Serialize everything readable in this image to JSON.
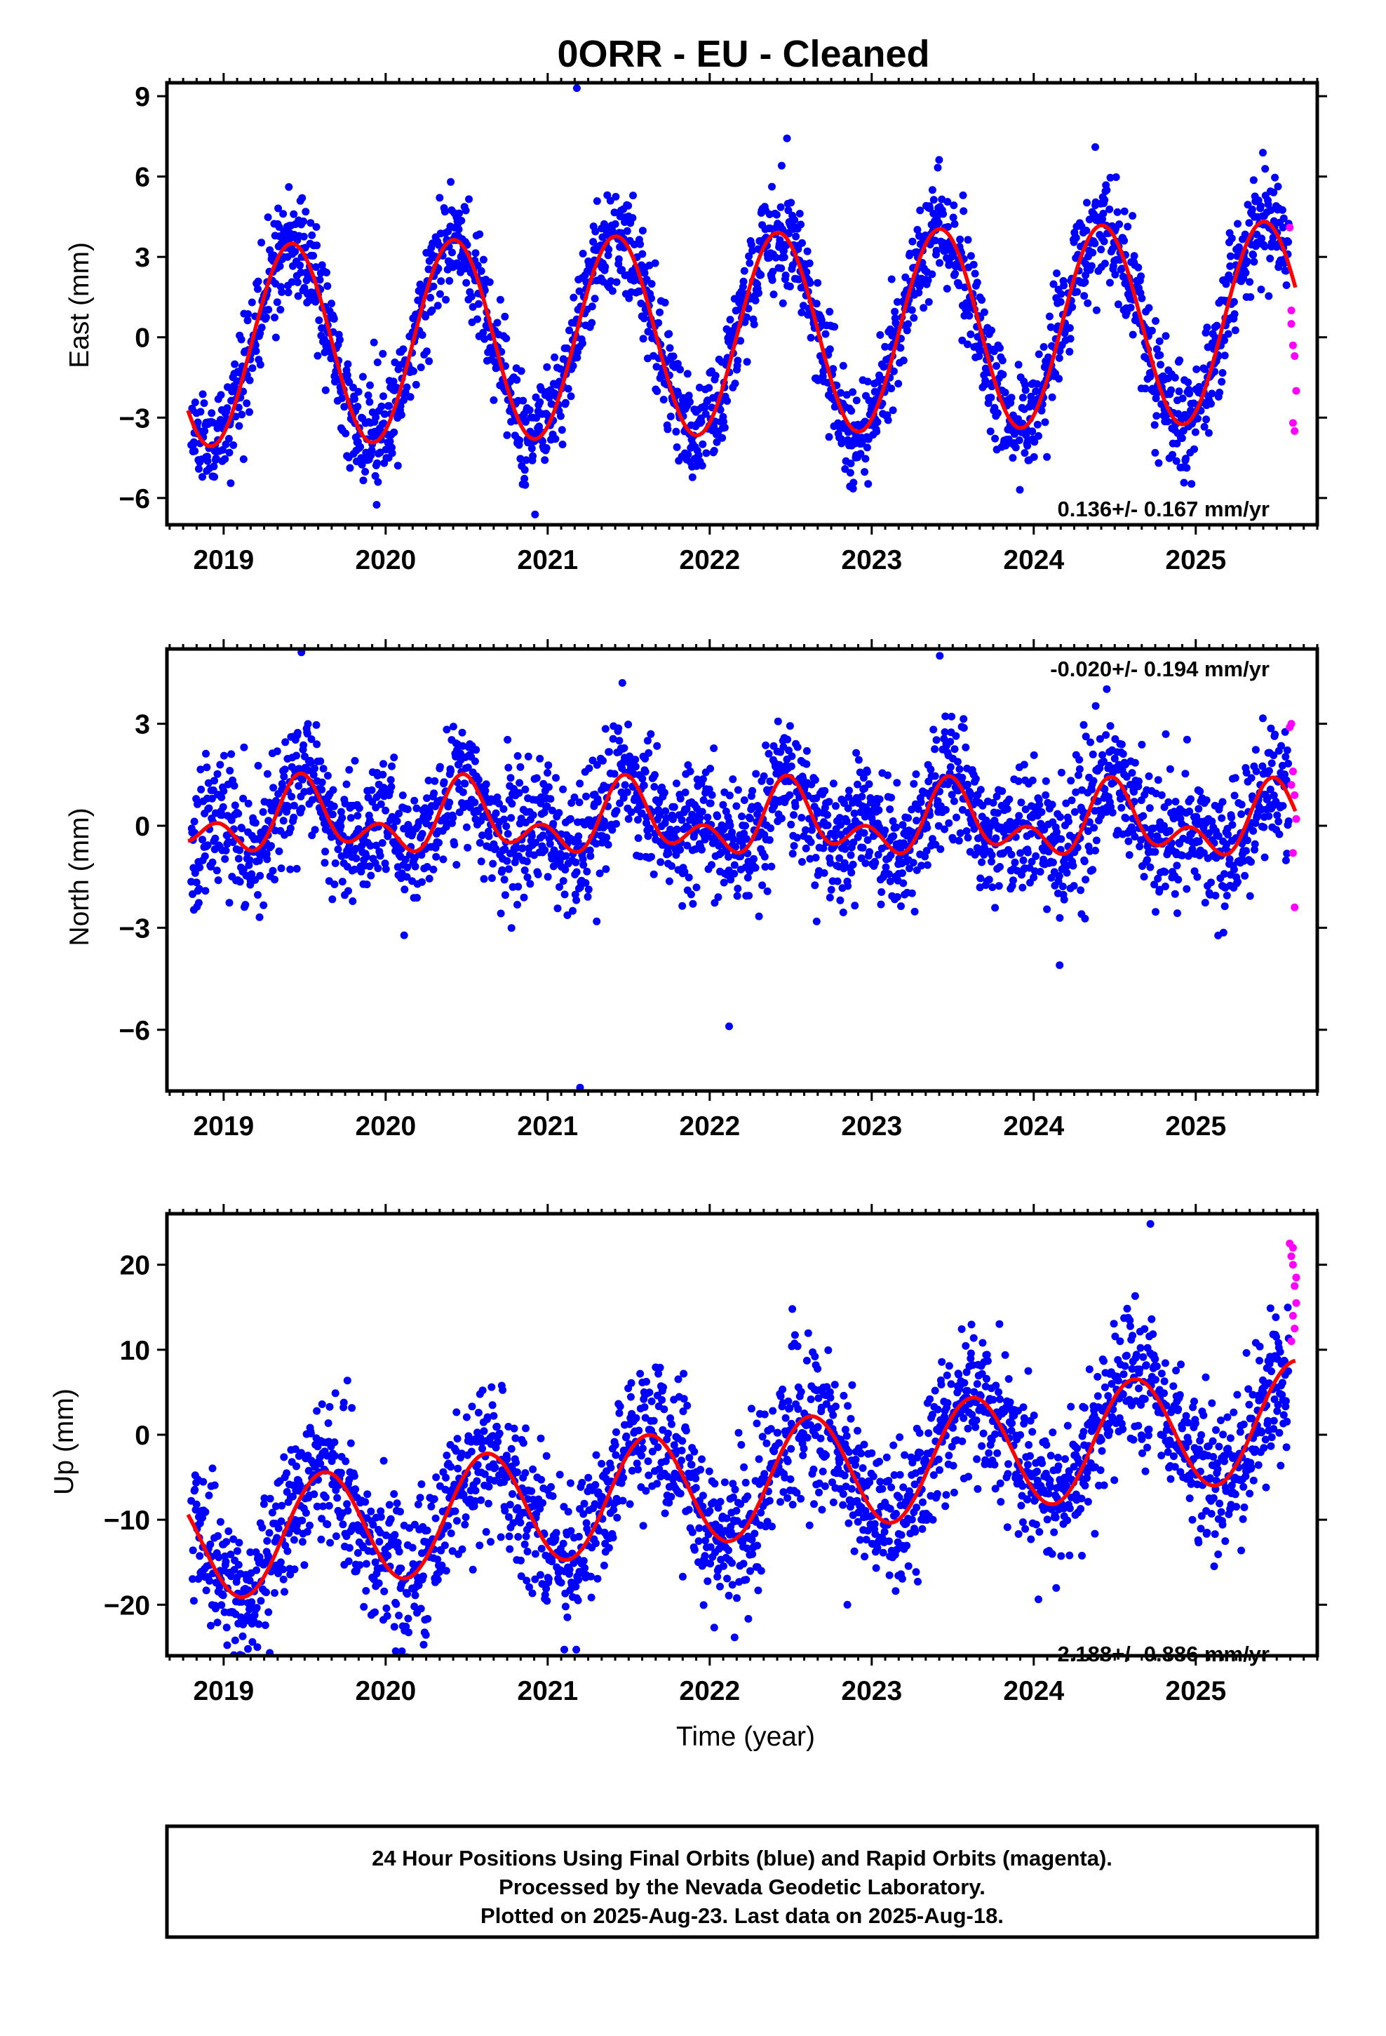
{
  "title": "0ORR  - EU - Cleaned",
  "colors": {
    "final_orbits": "#0000ff",
    "rapid_orbits": "#ff00ff",
    "model_fit": "#ff0000",
    "frame": "#000000"
  },
  "xlabel": "Time (year)",
  "footer": {
    "line1": "24 Hour Positions Using Final Orbits (blue) and Rapid Orbits (magenta).",
    "line2": "Processed by the Nevada Geodetic Laboratory.",
    "line3": "Plotted on 2025-Aug-23. Last data on 2025-Aug-18."
  },
  "chart_data": [
    {
      "type": "scatter",
      "name": "east",
      "ylabel": "East (mm)",
      "xlim": [
        2018.65,
        2025.75
      ],
      "ylim": [
        -7,
        9.5
      ],
      "xticks": [
        "2019",
        "2020",
        "2021",
        "2022",
        "2023",
        "2024",
        "2025"
      ],
      "yticks": [
        "9",
        "6",
        "3",
        "0",
        "−3",
        "−6"
      ],
      "ytick_values": [
        9,
        6,
        3,
        0,
        -3,
        -6
      ],
      "rate_text": "0.136+/- 0.167 mm/yr",
      "rate_position": "bottom-right",
      "model": {
        "trend": 0.136,
        "offset": 0.1,
        "annual_amp": 3.75,
        "annual_peak": 0.42,
        "semiannual_amp": 0.0,
        "semiannual_peak": 0.0
      },
      "scatter": {
        "sigma": 1.0,
        "seed": 11,
        "extremes": [
          [
            2021.18,
            9.3
          ],
          [
            2024.38,
            7.1
          ]
        ]
      },
      "rapid": {
        "x": [
          2025.58,
          2025.59,
          2025.6,
          2025.61,
          2025.62,
          2025.6,
          2025.61,
          2025.59
        ],
        "y": [
          4.1,
          1.0,
          -0.3,
          -0.7,
          -2.0,
          -3.2,
          -3.5,
          0.5
        ]
      },
      "grid": false
    },
    {
      "type": "scatter",
      "name": "north",
      "ylabel": "North (mm)",
      "xlim": [
        2018.65,
        2025.75
      ],
      "ylim": [
        -7.8,
        5.2
      ],
      "xticks": [
        "2019",
        "2020",
        "2021",
        "2022",
        "2023",
        "2024",
        "2025"
      ],
      "yticks": [
        "3",
        "0",
        "−3",
        "−6"
      ],
      "ytick_values": [
        3,
        0,
        -3,
        -6
      ],
      "rate_text": "-0.020+/- 0.194 mm/yr",
      "rate_position": "top-right",
      "model": {
        "trend": -0.02,
        "offset": 0.1,
        "annual_amp": 0.75,
        "annual_peak": 0.5,
        "semiannual_amp": 0.65,
        "semiannual_peak": 0.47
      },
      "scatter": {
        "sigma": 0.95,
        "seed": 23,
        "extremes": [
          [
            2021.2,
            -7.7
          ],
          [
            2022.12,
            -5.9
          ],
          [
            2019.48,
            5.1
          ],
          [
            2023.42,
            5.0
          ],
          [
            2024.16,
            -4.1
          ]
        ]
      },
      "rapid": {
        "x": [
          2025.58,
          2025.59,
          2025.6,
          2025.61,
          2025.62,
          2025.6,
          2025.61,
          2025.59
        ],
        "y": [
          2.9,
          3.0,
          1.6,
          0.9,
          0.2,
          -0.8,
          -2.4,
          1.2
        ]
      },
      "grid": false
    },
    {
      "type": "scatter",
      "name": "up",
      "ylabel": "Up (mm)",
      "xlim": [
        2018.65,
        2025.75
      ],
      "ylim": [
        -26,
        26
      ],
      "xticks": [
        "2019",
        "2020",
        "2021",
        "2022",
        "2023",
        "2024",
        "2025"
      ],
      "yticks": [
        "20",
        "10",
        "0",
        "−10",
        "−20"
      ],
      "ytick_values": [
        20,
        10,
        0,
        -10,
        -20
      ],
      "rate_text": "2.188+/- 0.886 mm/yr",
      "rate_position": "bottom-right",
      "model": {
        "trend": 2.188,
        "offset": -6.0,
        "annual_amp": 6.8,
        "annual_peak": 0.62,
        "semiannual_amp": 0.0,
        "semiannual_peak": 0.0
      },
      "scatter": {
        "sigma": 4.3,
        "seed": 37,
        "extremes": [
          [
            2024.72,
            24.8
          ],
          [
            2019.15,
            -25.2
          ],
          [
            2022.85,
            -20.0
          ]
        ]
      },
      "rapid": {
        "x": [
          2025.58,
          2025.59,
          2025.6,
          2025.61,
          2025.62,
          2025.6,
          2025.61,
          2025.59,
          2025.62,
          2025.6
        ],
        "y": [
          22.5,
          21.0,
          20.0,
          17.5,
          15.5,
          14.0,
          12.5,
          11.0,
          18.5,
          22.0
        ]
      },
      "grid": false
    }
  ]
}
